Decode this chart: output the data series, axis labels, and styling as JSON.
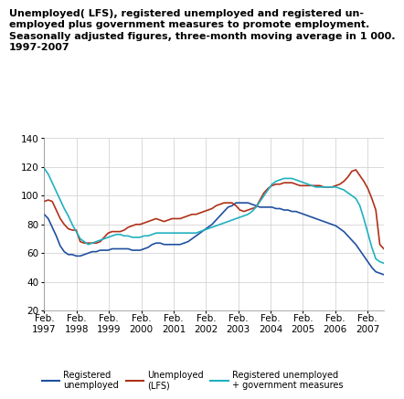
{
  "title_lines": [
    "Unemployed( LFS), registered unemployed and registered un-",
    "employed plus government measures to promote employment.",
    "Seasonally adjusted figures, three-month moving average in 1 000.",
    "1997-2007"
  ],
  "ylim": [
    20,
    140
  ],
  "yticks": [
    20,
    40,
    60,
    80,
    100,
    120,
    140
  ],
  "colors": {
    "registered_unemployed": "#2050a0",
    "lfs": "#b03018",
    "reg_plus_gov": "#20b0c0"
  },
  "x_tick_labels": [
    "Feb.\n1997",
    "Feb.\n1998",
    "Feb.\n1999",
    "Feb.\n2000",
    "Feb.\n2001",
    "Feb.\n2002",
    "Feb.\n2003",
    "Feb.\n2004",
    "Feb.\n2005",
    "Feb.\n2006",
    "Feb.\n2007"
  ],
  "registered_unemployed": [
    87,
    84,
    78,
    72,
    65,
    61,
    59,
    59,
    58,
    58,
    59,
    60,
    61,
    61,
    62,
    62,
    62,
    63,
    63,
    63,
    63,
    63,
    62,
    62,
    62,
    63,
    64,
    66,
    67,
    67,
    66,
    66,
    66,
    66,
    66,
    67,
    68,
    70,
    72,
    74,
    76,
    78,
    80,
    83,
    86,
    89,
    92,
    93,
    95,
    95,
    95,
    95,
    94,
    93,
    92,
    92,
    92,
    92,
    91,
    91,
    90,
    90,
    89,
    89,
    88,
    87,
    86,
    85,
    84,
    83,
    82,
    81,
    80,
    79,
    77,
    75,
    72,
    69,
    66,
    62,
    58,
    54,
    50,
    47,
    46,
    45
  ],
  "lfs": [
    96,
    97,
    96,
    90,
    84,
    80,
    77,
    76,
    76,
    68,
    67,
    67,
    67,
    67,
    68,
    71,
    74,
    75,
    75,
    75,
    76,
    78,
    79,
    80,
    80,
    81,
    82,
    83,
    84,
    83,
    82,
    83,
    84,
    84,
    84,
    85,
    86,
    87,
    87,
    88,
    89,
    90,
    91,
    93,
    94,
    95,
    95,
    95,
    93,
    90,
    89,
    90,
    91,
    92,
    97,
    102,
    105,
    107,
    108,
    108,
    109,
    109,
    109,
    108,
    107,
    107,
    107,
    107,
    107,
    107,
    106,
    106,
    106,
    107,
    108,
    110,
    113,
    117,
    118,
    114,
    110,
    105,
    98,
    90,
    66,
    63
  ],
  "reg_plus_gov": [
    119,
    115,
    109,
    103,
    97,
    91,
    86,
    80,
    75,
    70,
    68,
    66,
    67,
    68,
    69,
    70,
    71,
    72,
    73,
    73,
    72,
    72,
    71,
    71,
    71,
    72,
    72,
    73,
    74,
    74,
    74,
    74,
    74,
    74,
    74,
    74,
    74,
    74,
    74,
    75,
    76,
    77,
    78,
    79,
    80,
    81,
    82,
    83,
    84,
    85,
    86,
    87,
    89,
    92,
    96,
    100,
    104,
    108,
    110,
    111,
    112,
    112,
    112,
    111,
    110,
    109,
    108,
    107,
    106,
    106,
    106,
    106,
    106,
    106,
    105,
    104,
    102,
    100,
    98,
    93,
    84,
    74,
    64,
    56,
    54,
    53
  ],
  "legend_labels": [
    "Registered\nunemployed",
    "Unemployed\n(LFS)",
    "Registered unemployed\n+ government measures"
  ],
  "legend_colors": [
    "#2050a0",
    "#b03018",
    "#20b0c0"
  ],
  "bg_color": "#ffffff",
  "grid_color": "#cccccc",
  "title_fontsize": 8.0,
  "tick_fontsize": 7.5,
  "legend_fontsize": 7.0,
  "linewidth": 1.2
}
